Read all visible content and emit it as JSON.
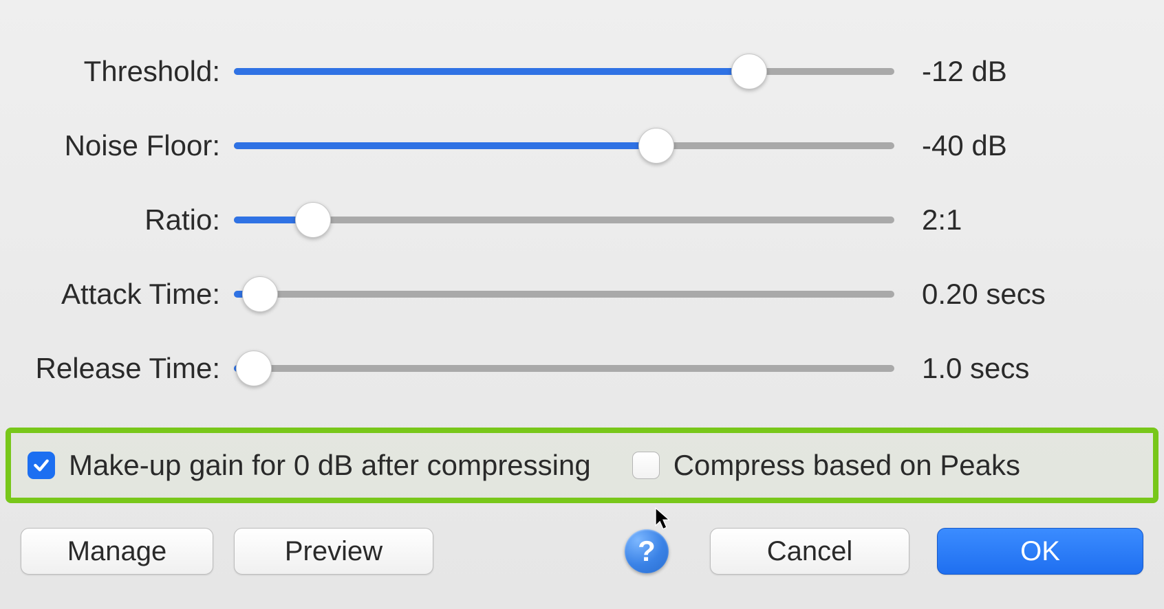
{
  "sliders": [
    {
      "key": "threshold",
      "label": "Threshold:",
      "value": "-12 dB",
      "percent": 78
    },
    {
      "key": "noise-floor",
      "label": "Noise Floor:",
      "value": "-40 dB",
      "percent": 64
    },
    {
      "key": "ratio",
      "label": "Ratio:",
      "value": "2:1",
      "percent": 12
    },
    {
      "key": "attack-time",
      "label": "Attack Time:",
      "value": "0.20 secs",
      "percent": 4
    },
    {
      "key": "release-time",
      "label": "Release Time:",
      "value": "1.0 secs",
      "percent": 3
    }
  ],
  "checkboxes": {
    "makeup_gain": {
      "label": "Make-up gain for 0 dB after compressing",
      "checked": true
    },
    "compress_peaks": {
      "label": "Compress based on Peaks",
      "checked": false
    }
  },
  "buttons": {
    "manage": "Manage",
    "preview": "Preview",
    "help": "?",
    "cancel": "Cancel",
    "ok": "OK"
  },
  "colors": {
    "slider_fill": "#2f72e4",
    "slider_track": "#a9a9a9",
    "highlight": "#78c71a",
    "primary_btn": "#1f6ff0"
  }
}
